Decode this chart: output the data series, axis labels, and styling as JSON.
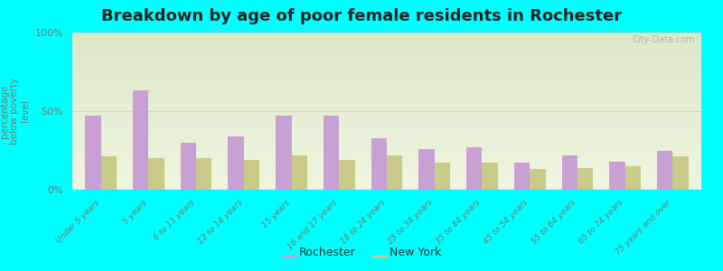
{
  "title": "Breakdown by age of poor female residents in Rochester",
  "ylabel": "percentage\nbelow poverty\nlevel",
  "background_color": "#00FFFF",
  "plot_bg_top": "#dce8c8",
  "plot_bg_bottom": "#f0f5e0",
  "categories": [
    "Under 5 years",
    "5 years",
    "6 to 11 years",
    "12 to 14 years",
    "15 years",
    "16 and 17 years",
    "18 to 24 years",
    "25 to 34 years",
    "35 to 44 years",
    "45 to 54 years",
    "55 to 64 years",
    "65 to 74 years",
    "75 years and over"
  ],
  "rochester": [
    47,
    63,
    30,
    34,
    47,
    47,
    33,
    26,
    27,
    17,
    22,
    18,
    25
  ],
  "new_york": [
    21,
    20,
    20,
    19,
    22,
    19,
    22,
    17,
    17,
    13,
    14,
    15,
    21
  ],
  "rochester_color": "#c8a0d4",
  "new_york_color": "#c8cc88",
  "ylim": [
    0,
    100
  ],
  "yticks": [
    0,
    50,
    100
  ],
  "ytick_labels": [
    "0%",
    "50%",
    "100%"
  ],
  "title_fontsize": 13,
  "legend_labels": [
    "Rochester",
    "New York"
  ],
  "watermark": "City-Data.com"
}
